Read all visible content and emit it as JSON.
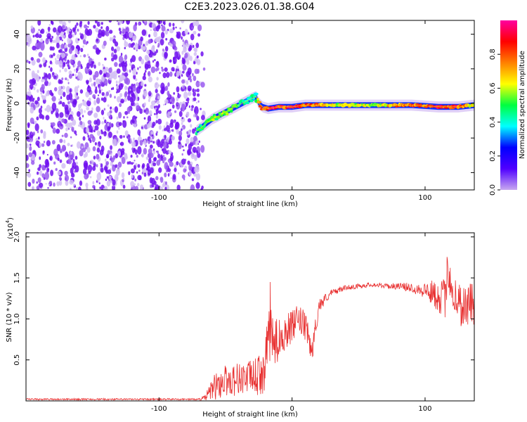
{
  "figure": {
    "title": "C2E3.2023.026.01.38.G04"
  },
  "chart_data": [
    {
      "type": "heatmap",
      "title": "C2E3.2023.026.01.38.G04",
      "xlabel": "Height of straight line (km)",
      "ylabel": "Frequency (Hz)",
      "xlim": [
        -200,
        137
      ],
      "ylim": [
        -50,
        48
      ],
      "xticks": [
        -100,
        0,
        100
      ],
      "yticks": [
        -40,
        -20,
        0,
        20,
        40
      ],
      "colorbar": {
        "label": "Normalized spectral amplitude",
        "range": [
          0,
          1
        ],
        "ticks": [
          "0.0",
          "0.2",
          "0.4",
          "0.6",
          "0.8"
        ],
        "colormap": [
          "#c8a8f0",
          "#5000ff",
          "#0000ff",
          "#00ffff",
          "#00ff40",
          "#ffff00",
          "#ff8000",
          "#ff0000",
          "#ff00a0"
        ]
      },
      "noise_region_x": [
        -200,
        -70
      ],
      "signal_track": {
        "x": [
          -72,
          -65,
          -60,
          -55,
          -50,
          -45,
          -40,
          -35,
          -30,
          -27,
          -25,
          -22,
          -18,
          -10,
          0,
          10,
          30,
          60,
          90,
          110,
          125,
          137
        ],
        "freq": [
          -16,
          -12,
          -9,
          -7,
          -5,
          -3,
          -1,
          1,
          3,
          4,
          0,
          -2,
          -3,
          -2,
          -2,
          -1,
          -1,
          -1,
          -1,
          -2,
          -2,
          -1
        ],
        "amplitude": [
          0.4,
          0.5,
          0.55,
          0.5,
          0.5,
          0.45,
          0.45,
          0.4,
          0.4,
          0.35,
          0.7,
          0.9,
          0.9,
          0.9,
          0.85,
          0.85,
          0.6,
          0.55,
          0.8,
          0.9,
          0.85,
          0.6
        ]
      }
    },
    {
      "type": "line",
      "xlabel": "Height of straight line (km)",
      "ylabel": "SNR (10 * v/v)",
      "y_multiplier_label": "(x10",
      "y_multiplier_exp": "4",
      "y_multiplier_close": ")",
      "xlim": [
        -200,
        137
      ],
      "ylim": [
        0,
        2.05
      ],
      "xticks": [
        -100,
        0,
        100
      ],
      "yticks": [
        0.5,
        1.0,
        1.5,
        2.0
      ],
      "series": [
        {
          "color": "#e83030",
          "x": [
            -200,
            -180,
            -160,
            -140,
            -120,
            -100,
            -80,
            -70,
            -65,
            -60,
            -55,
            -50,
            -45,
            -40,
            -35,
            -30,
            -25,
            -20,
            -17,
            -15,
            -13,
            -10,
            -5,
            0,
            5,
            10,
            15,
            20,
            25,
            30,
            40,
            50,
            60,
            70,
            80,
            90,
            100,
            105,
            110,
            115,
            118,
            120,
            125,
            130,
            135,
            137
          ],
          "values": [
            0.02,
            0.02,
            0.02,
            0.02,
            0.02,
            0.02,
            0.02,
            0.02,
            0.04,
            0.15,
            0.2,
            0.25,
            0.25,
            0.28,
            0.28,
            0.3,
            0.3,
            0.4,
            1.0,
            0.75,
            0.7,
            0.75,
            0.85,
            0.9,
            1.0,
            0.9,
            0.6,
            1.15,
            1.25,
            1.32,
            1.38,
            1.4,
            1.42,
            1.4,
            1.4,
            1.38,
            1.35,
            1.32,
            1.28,
            1.25,
            1.7,
            1.35,
            1.2,
            1.15,
            1.2,
            1.1
          ],
          "noise": [
            0.01,
            0.01,
            0.01,
            0.01,
            0.01,
            0.01,
            0.01,
            0.01,
            0.04,
            0.15,
            0.18,
            0.2,
            0.2,
            0.2,
            0.2,
            0.2,
            0.25,
            0.3,
            0.6,
            0.35,
            0.3,
            0.25,
            0.22,
            0.2,
            0.18,
            0.18,
            0.15,
            0.1,
            0.06,
            0.04,
            0.03,
            0.03,
            0.03,
            0.03,
            0.04,
            0.06,
            0.1,
            0.15,
            0.2,
            0.25,
            0.35,
            0.3,
            0.28,
            0.28,
            0.28,
            0.25
          ]
        }
      ]
    }
  ]
}
